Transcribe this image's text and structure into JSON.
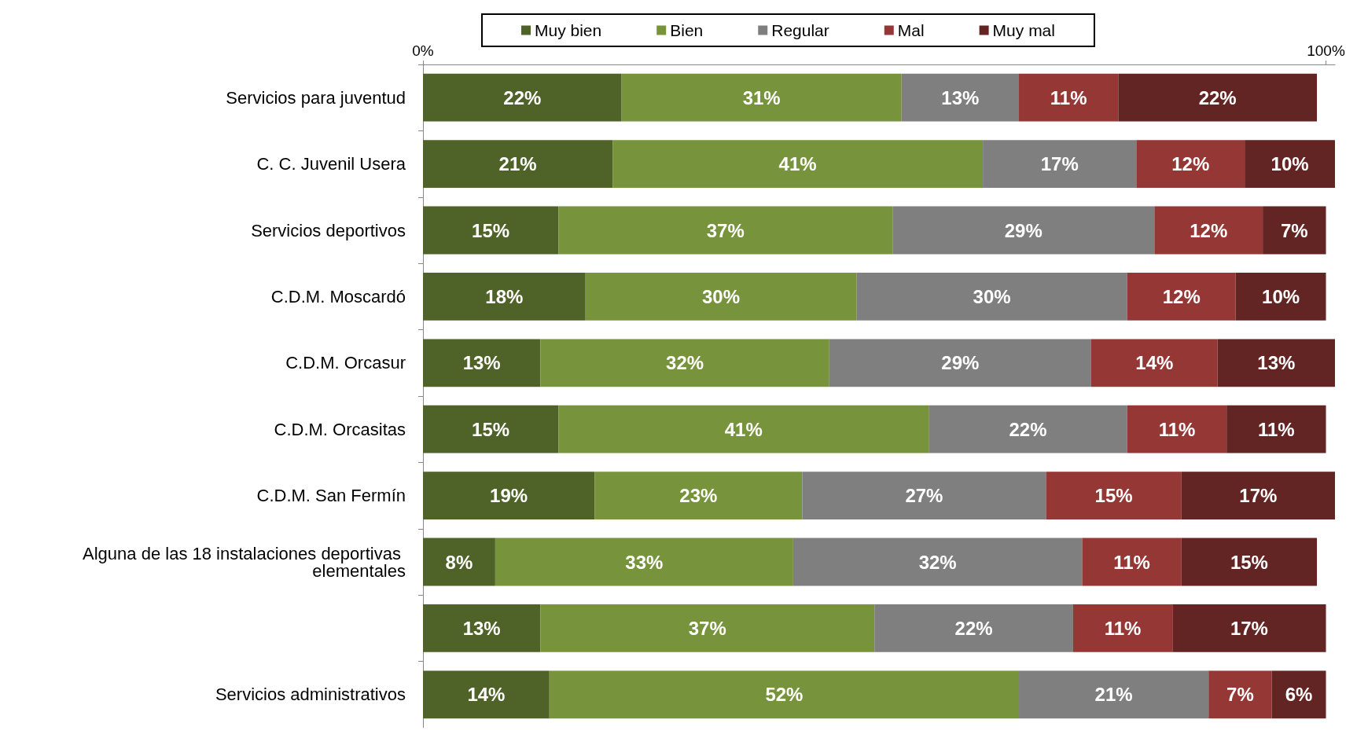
{
  "chart_data": {
    "type": "bar",
    "orientation": "horizontal",
    "stacked": true,
    "categories": [
      "Servicios para juventud",
      "C. C. Juvenil Usera",
      "Servicios deportivos",
      "C.D.M. Moscardó",
      "C.D.M. Orcasur",
      "C.D.M. Orcasitas",
      "C.D.M. San Fermín",
      "Alguna de las 18 instalaciones deportivas elementales",
      null,
      "Servicios administrativos"
    ],
    "series": [
      {
        "name": "Muy bien",
        "color": "#4f6228",
        "values": [
          22,
          21,
          15,
          18,
          13,
          15,
          19,
          8,
          13,
          14
        ],
        "value_labels": [
          "22%",
          "21%",
          "15%",
          "18%",
          "13%",
          "15%",
          "19%",
          "8%",
          "13%",
          "14%"
        ]
      },
      {
        "name": "Bien",
        "color": "#77933c",
        "values": [
          31,
          41,
          37,
          30,
          32,
          41,
          23,
          33,
          37,
          52
        ],
        "value_labels": [
          "31%",
          "41%",
          "37%",
          "30%",
          "32%",
          "41%",
          "23%",
          "33%",
          "37%",
          "52%"
        ]
      },
      {
        "name": "Regular",
        "color": "#7f7f7f",
        "values": [
          13,
          17,
          29,
          30,
          29,
          22,
          27,
          32,
          22,
          21
        ],
        "value_labels": [
          "13%",
          "17%",
          "29%",
          "30%",
          "29%",
          "22%",
          "27%",
          "32%",
          "22%",
          "21%"
        ]
      },
      {
        "name": "Mal",
        "color": "#953735",
        "values": [
          11,
          12,
          12,
          12,
          14,
          11,
          15,
          11,
          11,
          7
        ],
        "value_labels": [
          "11%",
          "12%",
          "12%",
          "12%",
          "14%",
          "11%",
          "15%",
          "11%",
          "11%",
          "7%"
        ]
      },
      {
        "name": "Muy mal",
        "color": "#632523",
        "values": [
          22,
          10,
          7,
          10,
          13,
          11,
          17,
          15,
          17,
          6
        ],
        "value_labels": [
          "22%",
          "10%",
          "7%",
          "10%",
          "13%",
          "11%",
          "17%",
          "15%",
          "17%",
          "6%"
        ]
      }
    ],
    "xlim": [
      0,
      101
    ],
    "xticks": [
      {
        "value": 0,
        "label": "0%"
      },
      {
        "value": 100,
        "label": "100%"
      }
    ],
    "grid": false,
    "legend": "top"
  }
}
